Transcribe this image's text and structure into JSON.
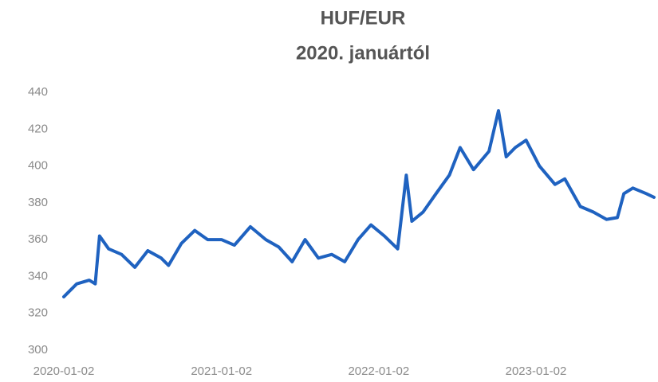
{
  "chart_data": {
    "type": "line",
    "title": "HUF/EUR",
    "subtitle": "2020. januártól",
    "x": [
      "2020-01-02",
      "2020-02-01",
      "2020-03-01",
      "2020-03-15",
      "2020-03-25",
      "2020-04-15",
      "2020-05-15",
      "2020-06-15",
      "2020-07-15",
      "2020-08-15",
      "2020-09-01",
      "2020-10-01",
      "2020-11-01",
      "2020-12-01",
      "2021-01-02",
      "2021-02-01",
      "2021-03-10",
      "2021-04-15",
      "2021-05-15",
      "2021-06-15",
      "2021-07-15",
      "2021-08-15",
      "2021-09-15",
      "2021-10-15",
      "2021-11-15",
      "2021-12-15",
      "2022-01-15",
      "2022-02-15",
      "2022-03-07",
      "2022-03-20",
      "2022-04-15",
      "2022-05-15",
      "2022-06-15",
      "2022-07-10",
      "2022-08-10",
      "2022-09-15",
      "2022-10-07",
      "2022-10-25",
      "2022-11-15",
      "2022-12-10",
      "2023-01-10",
      "2023-02-15",
      "2023-03-10",
      "2023-04-15",
      "2023-05-15",
      "2023-06-15",
      "2023-07-10",
      "2023-07-25",
      "2023-08-15",
      "2023-09-15",
      "2023-10-03"
    ],
    "values": [
      329,
      336,
      338,
      336,
      362,
      355,
      352,
      345,
      354,
      350,
      346,
      358,
      365,
      360,
      360,
      357,
      367,
      360,
      356,
      348,
      360,
      350,
      352,
      348,
      360,
      368,
      362,
      355,
      395,
      370,
      375,
      385,
      395,
      410,
      398,
      408,
      430,
      405,
      410,
      414,
      400,
      390,
      393,
      378,
      375,
      371,
      372,
      385,
      388,
      385,
      383
    ],
    "color": "#1f62c0",
    "xlim": [
      "2020-01-02",
      "2023-10-03"
    ],
    "xticks": [
      "2020-01-02",
      "2021-01-02",
      "2022-01-02",
      "2023-01-02"
    ],
    "ylim": [
      300,
      440
    ],
    "yticks": [
      300,
      320,
      340,
      360,
      380,
      400,
      420,
      440
    ],
    "grid": false
  }
}
